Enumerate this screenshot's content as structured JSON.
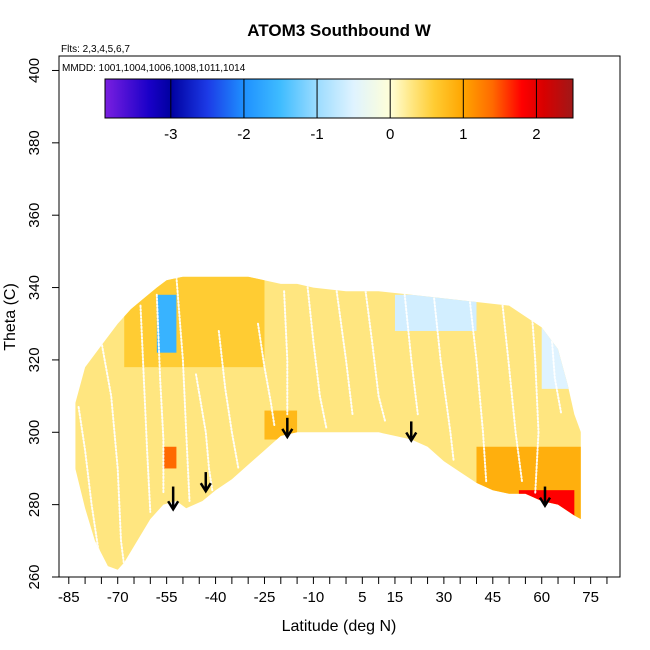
{
  "chart_data": {
    "type": "heatmap",
    "title": "ATOM3 Southbound W",
    "annotations": {
      "flights": "Flts: 2,3,4,5,6,7",
      "dates": "MMDD: 1001,1004,1006,1008,1011,1014"
    },
    "xlabel": "Latitude (deg N)",
    "ylabel": "Theta (C)",
    "xlim": [
      -88,
      84
    ],
    "ylim": [
      260,
      404
    ],
    "x_ticks": [
      -85,
      -70,
      -55,
      -40,
      -25,
      -10,
      5,
      15,
      30,
      45,
      60,
      75
    ],
    "x_minor_ticks": [
      -80,
      -75,
      -65,
      -60,
      -50,
      -45,
      -35,
      -30,
      -20,
      -15,
      -5,
      0,
      10,
      20,
      25,
      35,
      40,
      50,
      55,
      65,
      70,
      80
    ],
    "y_ticks": [
      260,
      280,
      300,
      320,
      340,
      360,
      380,
      400
    ],
    "colorbar": {
      "range": [
        -3.9,
        2.5
      ],
      "ticks": [
        -3,
        -2,
        -1,
        0,
        1,
        2
      ],
      "colors": [
        {
          "v": -3.9,
          "c": "#7a1fe0"
        },
        {
          "v": -3.3,
          "c": "#1a00c8"
        },
        {
          "v": -3.0,
          "c": "#0000a0"
        },
        {
          "v": -2.5,
          "c": "#1c3ae6"
        },
        {
          "v": -2.0,
          "c": "#1e90ff"
        },
        {
          "v": -1.5,
          "c": "#3fbcff"
        },
        {
          "v": -1.0,
          "c": "#9cdcff"
        },
        {
          "v": -0.5,
          "c": "#dff3ff"
        },
        {
          "v": 0.0,
          "c": "#ffffd8"
        },
        {
          "v": 0.3,
          "c": "#ffe680"
        },
        {
          "v": 0.6,
          "c": "#ffcc33"
        },
        {
          "v": 1.0,
          "c": "#ffa500"
        },
        {
          "v": 1.4,
          "c": "#ff6a00"
        },
        {
          "v": 1.8,
          "c": "#ff0000"
        },
        {
          "v": 2.1,
          "c": "#d80000"
        },
        {
          "v": 2.5,
          "c": "#a01818"
        }
      ]
    },
    "data_envelope": {
      "top": [
        [
          -83,
          308
        ],
        [
          -80,
          318
        ],
        [
          -75,
          324
        ],
        [
          -70,
          330
        ],
        [
          -66,
          334
        ],
        [
          -62,
          337
        ],
        [
          -58,
          340
        ],
        [
          -55,
          342
        ],
        [
          -50,
          343
        ],
        [
          -40,
          343
        ],
        [
          -30,
          343
        ],
        [
          -20,
          341
        ],
        [
          -15,
          341
        ],
        [
          -10,
          340
        ],
        [
          0,
          339
        ],
        [
          10,
          339
        ],
        [
          20,
          338
        ],
        [
          30,
          337
        ],
        [
          40,
          336
        ],
        [
          50,
          335
        ],
        [
          55,
          332
        ],
        [
          60,
          329
        ],
        [
          65,
          323
        ],
        [
          68,
          313
        ],
        [
          70,
          305
        ],
        [
          72,
          300
        ]
      ],
      "bottom": [
        [
          -83,
          290
        ],
        [
          -80,
          279
        ],
        [
          -77,
          270
        ],
        [
          -73,
          263
        ],
        [
          -70,
          262
        ],
        [
          -68,
          264
        ],
        [
          -64,
          270
        ],
        [
          -60,
          276
        ],
        [
          -56,
          280
        ],
        [
          -52,
          281
        ],
        [
          -49,
          279
        ],
        [
          -44,
          281
        ],
        [
          -40,
          284
        ],
        [
          -35,
          287
        ],
        [
          -30,
          291
        ],
        [
          -25,
          295
        ],
        [
          -20,
          299
        ],
        [
          -15,
          300
        ],
        [
          -10,
          300
        ],
        [
          0,
          300
        ],
        [
          10,
          300
        ],
        [
          15,
          299
        ],
        [
          20,
          298
        ],
        [
          25,
          296
        ],
        [
          30,
          292
        ],
        [
          35,
          289
        ],
        [
          40,
          286
        ],
        [
          45,
          284
        ],
        [
          50,
          283
        ],
        [
          55,
          283
        ],
        [
          60,
          281
        ],
        [
          65,
          280
        ],
        [
          70,
          277
        ],
        [
          72,
          276
        ]
      ]
    },
    "w_field_regions": [
      {
        "x": [
          -83,
          72
        ],
        "y": [
          260,
          345
        ],
        "value": 0.3
      },
      {
        "x": [
          -68,
          -25
        ],
        "y": [
          318,
          343
        ],
        "value": 0.6
      },
      {
        "x": [
          -58,
          -52
        ],
        "y": [
          322,
          338
        ],
        "value": -1.6
      },
      {
        "x": [
          15,
          40
        ],
        "y": [
          328,
          338
        ],
        "value": -0.6
      },
      {
        "x": [
          60,
          72
        ],
        "y": [
          312,
          330
        ],
        "value": -0.5
      },
      {
        "x": [
          40,
          72
        ],
        "y": [
          276,
          296
        ],
        "value": 0.9
      },
      {
        "x": [
          53,
          70
        ],
        "y": [
          276,
          284
        ],
        "value": 1.8
      },
      {
        "x": [
          -56,
          -52
        ],
        "y": [
          290,
          296
        ],
        "value": 1.4
      },
      {
        "x": [
          -25,
          -15
        ],
        "y": [
          298,
          306
        ],
        "value": 0.8
      }
    ],
    "flight_paths": [
      [
        [
          -82,
          307
        ],
        [
          -80,
          295
        ],
        [
          -78,
          280
        ],
        [
          -76,
          268
        ],
        [
          -74,
          262
        ]
      ],
      [
        [
          -75,
          325
        ],
        [
          -72,
          310
        ],
        [
          -70,
          290
        ],
        [
          -69,
          270
        ],
        [
          -68,
          263
        ]
      ],
      [
        [
          -63,
          335
        ],
        [
          -62,
          315
        ],
        [
          -61,
          295
        ],
        [
          -60,
          278
        ]
      ],
      [
        [
          -58,
          338
        ],
        [
          -57,
          315
        ],
        [
          -56,
          298
        ],
        [
          -56,
          283
        ]
      ],
      [
        [
          -52,
          343
        ],
        [
          -50,
          320
        ],
        [
          -49,
          300
        ],
        [
          -48,
          281
        ]
      ],
      [
        [
          -46,
          316
        ],
        [
          -43,
          300
        ],
        [
          -42,
          290
        ],
        [
          -41,
          284
        ]
      ],
      [
        [
          -39,
          328
        ],
        [
          -37,
          312
        ],
        [
          -35,
          300
        ],
        [
          -33,
          290
        ]
      ],
      [
        [
          -27,
          330
        ],
        [
          -25,
          318
        ],
        [
          -23,
          308
        ],
        [
          -22,
          302
        ]
      ],
      [
        [
          -19,
          339
        ],
        [
          -18,
          320
        ],
        [
          -18,
          305
        ]
      ],
      [
        [
          -12,
          342
        ],
        [
          -10,
          325
        ],
        [
          -8,
          310
        ],
        [
          -6,
          301
        ]
      ],
      [
        [
          -3,
          340
        ],
        [
          0,
          320
        ],
        [
          2,
          305
        ]
      ],
      [
        [
          6,
          339
        ],
        [
          8,
          325
        ],
        [
          10,
          310
        ],
        [
          12,
          303
        ]
      ],
      [
        [
          18,
          338
        ],
        [
          20,
          320
        ],
        [
          22,
          305
        ]
      ],
      [
        [
          27,
          337
        ],
        [
          29,
          320
        ],
        [
          32,
          300
        ],
        [
          33,
          292
        ]
      ],
      [
        [
          38,
          336
        ],
        [
          40,
          320
        ],
        [
          42,
          300
        ],
        [
          43,
          286
        ]
      ],
      [
        [
          48,
          335
        ],
        [
          50,
          318
        ],
        [
          52,
          300
        ],
        [
          54,
          286
        ]
      ],
      [
        [
          57,
          333
        ],
        [
          58,
          320
        ],
        [
          59,
          300
        ],
        [
          58,
          283
        ]
      ],
      [
        [
          63,
          327
        ],
        [
          64,
          315
        ],
        [
          66,
          305
        ]
      ]
    ],
    "arrows": [
      {
        "x": -53,
        "y_from": 285,
        "y_to": 279
      },
      {
        "x": -43,
        "y_from": 289,
        "y_to": 284
      },
      {
        "x": -18,
        "y_from": 304,
        "y_to": 299
      },
      {
        "x": 20,
        "y_from": 303,
        "y_to": 298
      },
      {
        "x": 61,
        "y_from": 285,
        "y_to": 280
      }
    ]
  }
}
